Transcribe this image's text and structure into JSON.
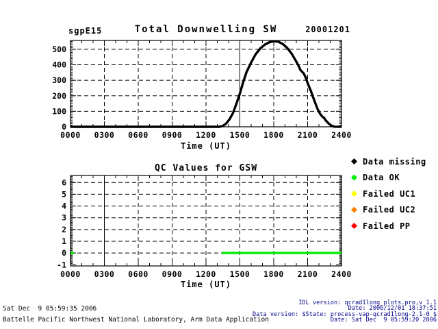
{
  "figure": {
    "site_label": "sgpE15",
    "main_title": "Total Downwelling SW",
    "date_label": "20001201",
    "qc_title": "QC Values for GSW",
    "x_axis_title": "Time (UT)"
  },
  "colors": {
    "background": "#ffffff",
    "axis": "#000000",
    "data_ok_green": "#00ee00",
    "missing_black": "#000000",
    "failed_uc1_yellow": "#ffff00",
    "failed_uc2_orange": "#ff8000",
    "failed_pp_red": "#ff0000",
    "footer_right_text": "#00008b"
  },
  "legend": {
    "items": [
      {
        "label": "Data missing",
        "color": "#000000"
      },
      {
        "label": "Data OK",
        "color": "#00ee00"
      },
      {
        "label": "Failed UC1",
        "color": "#ffff00"
      },
      {
        "label": "Failed UC2",
        "color": "#ff8000"
      },
      {
        "label": "Failed PP",
        "color": "#ff0000"
      }
    ]
  },
  "footer_left": {
    "line1": "Sat Dec  9 05:59:35 2006",
    "line2": "Battelle Pacific Northwest National Laboratory, Arm Data Application"
  },
  "footer_right": {
    "lines": [
      "IDL version: qcrad1long_plots.pro,v 1.1",
      "Date: 2006/12/01 18:37:51",
      "Data version: $State: process-vap-qcrad1long-2.1-0 $",
      "Date: Sat Dec  9 05:59:20 2006"
    ]
  },
  "chart_data": [
    {
      "type": "line",
      "title": "Total Downwelling SW",
      "site": "sgpE15",
      "date": "20001201",
      "xlabel": "Time (UT)",
      "ylabel": "",
      "xlim": [
        0,
        24
      ],
      "ylim": [
        0,
        557
      ],
      "x_ticks": [
        0,
        3,
        6,
        9,
        12,
        15,
        18,
        21,
        24
      ],
      "x_ticklabels": [
        "0000",
        "0300",
        "0600",
        "0900",
        "1200",
        "1500",
        "1800",
        "2100",
        "2400"
      ],
      "y_ticks": [
        0,
        100,
        200,
        300,
        400,
        500
      ],
      "y_ticklabels": [
        "0",
        "100",
        "200",
        "300",
        "400",
        "500"
      ],
      "y_gridlines": [
        100,
        200,
        300,
        400,
        500
      ],
      "grid": "dashed",
      "solid_vgrid_at": [
        15
      ],
      "legend_position": "none",
      "series": [
        {
          "name": "total_downwelling_sw",
          "color": "#000000",
          "points": [
            [
              0,
              0
            ],
            [
              13.2,
              0
            ],
            [
              13.5,
              6
            ],
            [
              13.8,
              22
            ],
            [
              14.1,
              50
            ],
            [
              14.4,
              90
            ],
            [
              14.7,
              150
            ],
            [
              15.0,
              215
            ],
            [
              15.3,
              290
            ],
            [
              15.6,
              355
            ],
            [
              16.0,
              415
            ],
            [
              16.4,
              468
            ],
            [
              16.8,
              505
            ],
            [
              17.2,
              530
            ],
            [
              17.6,
              545
            ],
            [
              18.0,
              552
            ],
            [
              18.4,
              549
            ],
            [
              18.8,
              534
            ],
            [
              19.2,
              508
            ],
            [
              19.6,
              470
            ],
            [
              20.0,
              420
            ],
            [
              20.2,
              393
            ],
            [
              20.35,
              368
            ],
            [
              20.5,
              355
            ],
            [
              20.65,
              345
            ],
            [
              20.85,
              315
            ],
            [
              21.0,
              282
            ],
            [
              21.3,
              228
            ],
            [
              21.6,
              168
            ],
            [
              21.9,
              112
            ],
            [
              22.1,
              84
            ],
            [
              22.3,
              66
            ],
            [
              22.45,
              58
            ],
            [
              22.6,
              42
            ],
            [
              22.85,
              22
            ],
            [
              23.1,
              8
            ],
            [
              23.35,
              1
            ],
            [
              24,
              0
            ]
          ]
        }
      ]
    },
    {
      "type": "line",
      "title": "QC Values for GSW",
      "xlabel": "Time (UT)",
      "ylabel": "",
      "xlim": [
        0,
        24
      ],
      "ylim": [
        -1.1,
        6.6
      ],
      "x_ticks": [
        0,
        3,
        6,
        9,
        12,
        15,
        18,
        21,
        24
      ],
      "x_ticklabels": [
        "0000",
        "0300",
        "0600",
        "0900",
        "1200",
        "1500",
        "1800",
        "2100",
        "2400"
      ],
      "y_ticks": [
        -1,
        0,
        1,
        2,
        3,
        4,
        5,
        6
      ],
      "y_ticklabels": [
        "-1",
        "0",
        "1",
        "2",
        "3",
        "4",
        "5",
        "6"
      ],
      "y_gridlines": [
        0,
        1,
        2,
        3,
        4,
        5,
        6
      ],
      "grid": "dashed",
      "solid_vgrid_at": [
        3
      ],
      "legend_position": "right",
      "series": [
        {
          "name": "qc_data_ok",
          "color": "#00ee00",
          "points": [
            [
              13.4,
              0
            ],
            [
              24,
              0
            ]
          ]
        }
      ],
      "markers": [
        {
          "name": "qc_data_ok_point",
          "x": 0,
          "y": 0,
          "color": "#00ee00"
        }
      ]
    }
  ]
}
